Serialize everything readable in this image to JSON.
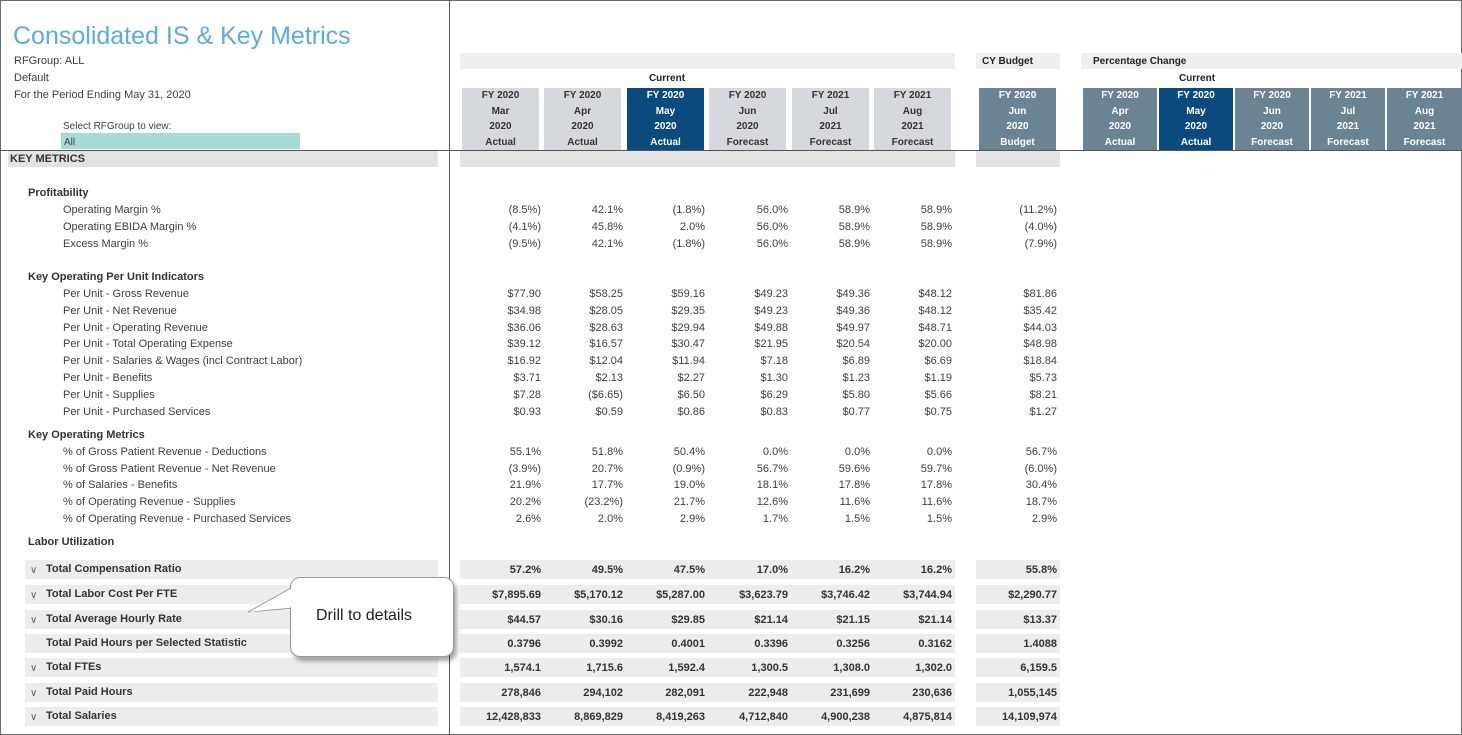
{
  "header": {
    "title": "Consolidated IS & Key Metrics",
    "rfgroup": "RFGroup: ALL",
    "scenario": "Default",
    "period": "For the Period Ending May 31, 2020",
    "select_label": "Select RFGroup to view:",
    "select_value": "All"
  },
  "groups": {
    "current": "Current",
    "cy_budget": "CY Budget",
    "pct_change": "Percentage Change",
    "current2": "Current"
  },
  "columns": [
    {
      "fy": "FY 2020",
      "month": "Mar",
      "year": "2020",
      "type": "Actual"
    },
    {
      "fy": "FY 2020",
      "month": "Apr",
      "year": "2020",
      "type": "Actual"
    },
    {
      "fy": "FY 2020",
      "month": "May",
      "year": "2020",
      "type": "Actual"
    },
    {
      "fy": "FY 2020",
      "month": "Jun",
      "year": "2020",
      "type": "Forecast"
    },
    {
      "fy": "FY 2021",
      "month": "Jul",
      "year": "2021",
      "type": "Forecast"
    },
    {
      "fy": "FY 2021",
      "month": "Aug",
      "year": "2021",
      "type": "Forecast"
    }
  ],
  "budget_column": {
    "fy": "FY 2020",
    "month": "Jun",
    "year": "2020",
    "type": "Budget"
  },
  "pct_columns": [
    {
      "fy": "FY 2020",
      "month": "Apr",
      "year": "2020",
      "type": "Actual"
    },
    {
      "fy": "FY 2020",
      "month": "May",
      "year": "2020",
      "type": "Actual"
    },
    {
      "fy": "FY 2020",
      "month": "Jun",
      "year": "2020",
      "type": "Forecast"
    },
    {
      "fy": "FY 2021",
      "month": "Jul",
      "year": "2021",
      "type": "Forecast"
    },
    {
      "fy": "FY 2021",
      "month": "Aug",
      "year": "2021",
      "type": "Forecast"
    }
  ],
  "key_metrics_title": "KEY METRICS",
  "sections": {
    "profitability": "Profitability",
    "per_unit": "Key Operating Per Unit Indicators",
    "operating": "Key Operating Metrics",
    "labor": "Labor Utilization"
  },
  "rows": [
    {
      "label": "Operating Margin %",
      "values": [
        "(8.5%)",
        "42.1%",
        "(1.8%)",
        "56.0%",
        "58.9%",
        "58.9%"
      ],
      "budget": "(11.2%)"
    },
    {
      "label": "Operating EBIDA Margin %",
      "values": [
        "(4.1%)",
        "45.8%",
        "2.0%",
        "56.0%",
        "58.9%",
        "58.9%"
      ],
      "budget": "(4.0%)"
    },
    {
      "label": "Excess Margin %",
      "values": [
        "(9.5%)",
        "42.1%",
        "(1.8%)",
        "56.0%",
        "58.9%",
        "58.9%"
      ],
      "budget": "(7.9%)"
    },
    {
      "label": "Per Unit - Gross Revenue",
      "values": [
        "$77.90",
        "$58.25",
        "$59.16",
        "$49.23",
        "$49.36",
        "$48.12"
      ],
      "budget": "$81.86"
    },
    {
      "label": "Per Unit - Net Revenue",
      "values": [
        "$34.98",
        "$28.05",
        "$29.35",
        "$49.23",
        "$49.36",
        "$48.12"
      ],
      "budget": "$35.42"
    },
    {
      "label": "Per Unit - Operating Revenue",
      "values": [
        "$36.06",
        "$28.63",
        "$29.94",
        "$49.88",
        "$49.97",
        "$48.71"
      ],
      "budget": "$44.03"
    },
    {
      "label": "Per Unit - Total Operating Expense",
      "values": [
        "$39.12",
        "$16.57",
        "$30.47",
        "$21.95",
        "$20.54",
        "$20.00"
      ],
      "budget": "$48.98"
    },
    {
      "label": "Per Unit - Salaries & Wages (incl Contract Labor)",
      "values": [
        "$16.92",
        "$12.04",
        "$11.94",
        "$7.18",
        "$6.89",
        "$6.69"
      ],
      "budget": "$18.84"
    },
    {
      "label": "Per Unit - Benefits",
      "values": [
        "$3.71",
        "$2.13",
        "$2.27",
        "$1.30",
        "$1.23",
        "$1.19"
      ],
      "budget": "$5.73"
    },
    {
      "label": "Per Unit - Supplies",
      "values": [
        "$7.28",
        "($6.65)",
        "$6.50",
        "$6.29",
        "$5.80",
        "$5.66"
      ],
      "budget": "$8.21"
    },
    {
      "label": "Per Unit - Purchased Services",
      "values": [
        "$0.93",
        "$0.59",
        "$0.86",
        "$0.83",
        "$0.77",
        "$0.75"
      ],
      "budget": "$1.27"
    },
    {
      "label": "% of Gross Patient Revenue - Deductions",
      "values": [
        "55.1%",
        "51.8%",
        "50.4%",
        "0.0%",
        "0.0%",
        "0.0%"
      ],
      "budget": "56.7%"
    },
    {
      "label": "% of Gross Patient Revenue - Net Revenue",
      "values": [
        "(3.9%)",
        "20.7%",
        "(0.9%)",
        "56.7%",
        "59.6%",
        "59.7%"
      ],
      "budget": "(6.0%)"
    },
    {
      "label": "% of Salaries - Benefits",
      "values": [
        "21.9%",
        "17.7%",
        "19.0%",
        "18.1%",
        "17.8%",
        "17.8%"
      ],
      "budget": "30.4%"
    },
    {
      "label": "% of Operating Revenue - Supplies",
      "values": [
        "20.2%",
        "(23.2%)",
        "21.7%",
        "12.6%",
        "11.6%",
        "11.6%"
      ],
      "budget": "18.7%"
    },
    {
      "label": "% of Operating Revenue - Purchased Services",
      "values": [
        "2.6%",
        "2.0%",
        "2.9%",
        "1.7%",
        "1.5%",
        "1.5%"
      ],
      "budget": "2.9%"
    }
  ],
  "totals": [
    {
      "label": "Total Compensation Ratio",
      "chev": "∨",
      "values": [
        "57.2%",
        "49.5%",
        "47.5%",
        "17.0%",
        "16.2%",
        "16.2%"
      ],
      "budget": "55.8%"
    },
    {
      "label": "Total Labor Cost Per FTE",
      "chev": "∨",
      "values": [
        "$7,895.69",
        "$5,170.12",
        "$5,287.00",
        "$3,623.79",
        "$3,746.42",
        "$3,744.94"
      ],
      "budget": "$2,290.77"
    },
    {
      "label": "Total Average Hourly Rate",
      "chev": "∨",
      "values": [
        "$44.57",
        "$30.16",
        "$29.85",
        "$21.14",
        "$21.15",
        "$21.14"
      ],
      "budget": "$13.37"
    },
    {
      "label": "Total Paid Hours per Selected Statistic",
      "chev": "",
      "values": [
        "0.3796",
        "0.3992",
        "0.4001",
        "0.3396",
        "0.3256",
        "0.3162"
      ],
      "budget": "1.4088"
    },
    {
      "label": "Total FTEs",
      "chev": "∨",
      "values": [
        "1,574.1",
        "1,715.6",
        "1,592.4",
        "1,300.5",
        "1,308.0",
        "1,302.0"
      ],
      "budget": "6,159.5"
    },
    {
      "label": "Total Paid Hours",
      "chev": "∨",
      "values": [
        "278,846",
        "294,102",
        "282,091",
        "222,948",
        "231,699",
        "230,636"
      ],
      "budget": "1,055,145"
    },
    {
      "label": "Total Salaries",
      "chev": "∨",
      "values": [
        "12,428,833",
        "8,869,829",
        "8,419,263",
        "4,712,840",
        "4,900,238",
        "4,875,814"
      ],
      "budget": "14,109,974"
    }
  ],
  "callout": {
    "text": "Drill to details"
  }
}
